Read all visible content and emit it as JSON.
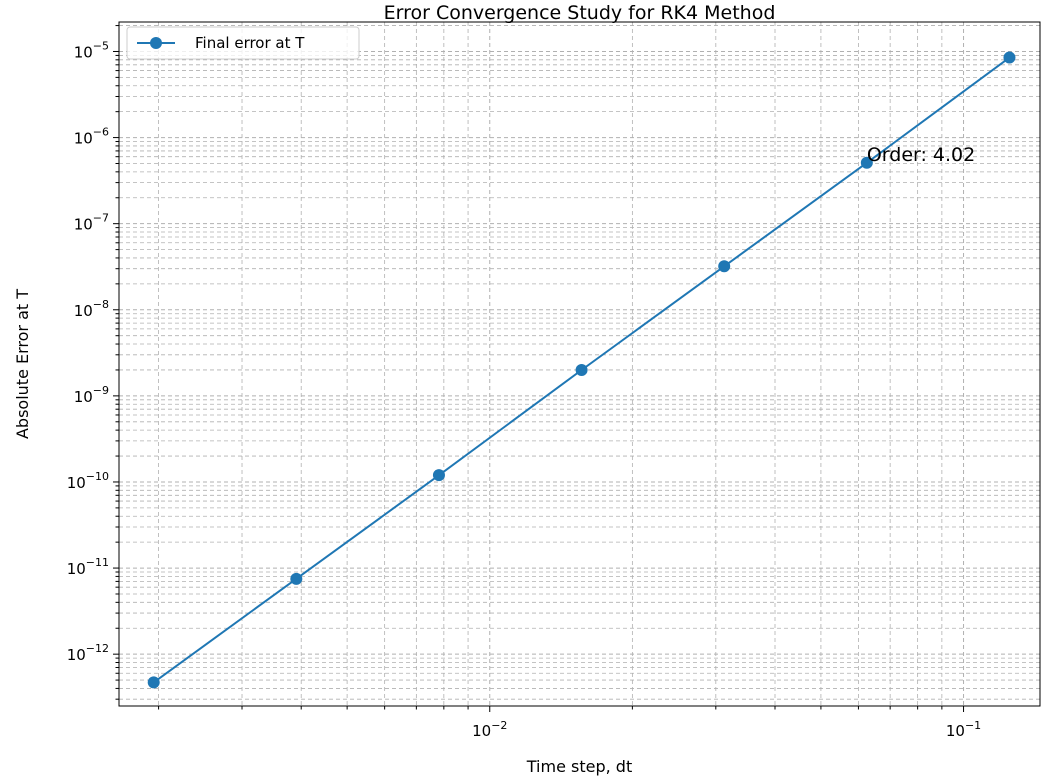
{
  "chart_data": {
    "type": "line",
    "title": "Error Convergence Study for RK4 Method",
    "xlabel": "Time step, dt",
    "ylabel": "Absolute Error at T",
    "xscale": "log",
    "yscale": "log",
    "xlim": [
      0.00165,
      0.145
    ],
    "ylim": [
      2.5e-13,
      2.2e-05
    ],
    "grid": true,
    "legend": "upper-left",
    "x_ticks": [
      {
        "base": "10",
        "exp": "−2",
        "value": 0.01
      },
      {
        "base": "10",
        "exp": "−1",
        "value": 0.1
      }
    ],
    "y_ticks": [
      {
        "base": "10",
        "exp": "−12",
        "value": 1e-12
      },
      {
        "base": "10",
        "exp": "−11",
        "value": 1e-11
      },
      {
        "base": "10",
        "exp": "−10",
        "value": 1e-10
      },
      {
        "base": "10",
        "exp": "−9",
        "value": 1e-09
      },
      {
        "base": "10",
        "exp": "−8",
        "value": 1e-08
      },
      {
        "base": "10",
        "exp": "−7",
        "value": 1e-07
      },
      {
        "base": "10",
        "exp": "−6",
        "value": 1e-06
      },
      {
        "base": "10",
        "exp": "−5",
        "value": 1e-05
      }
    ],
    "series": [
      {
        "name": "Final error at T",
        "color": "#1f77b4",
        "marker": "circle",
        "x": [
          0.001953125,
          0.00390625,
          0.0078125,
          0.015625,
          0.03125,
          0.0625,
          0.125
        ],
        "y": [
          4.7e-13,
          7.5e-12,
          1.2e-10,
          2e-09,
          3.2e-08,
          5.1e-07,
          8.5e-06
        ]
      }
    ],
    "annotations": [
      {
        "text": "Order: 4.02",
        "x": 0.0625,
        "y": 5.1e-07
      }
    ]
  },
  "colors": {
    "series": "#1f77b4",
    "grid": "#b0b0b0",
    "axes": "#000000"
  }
}
